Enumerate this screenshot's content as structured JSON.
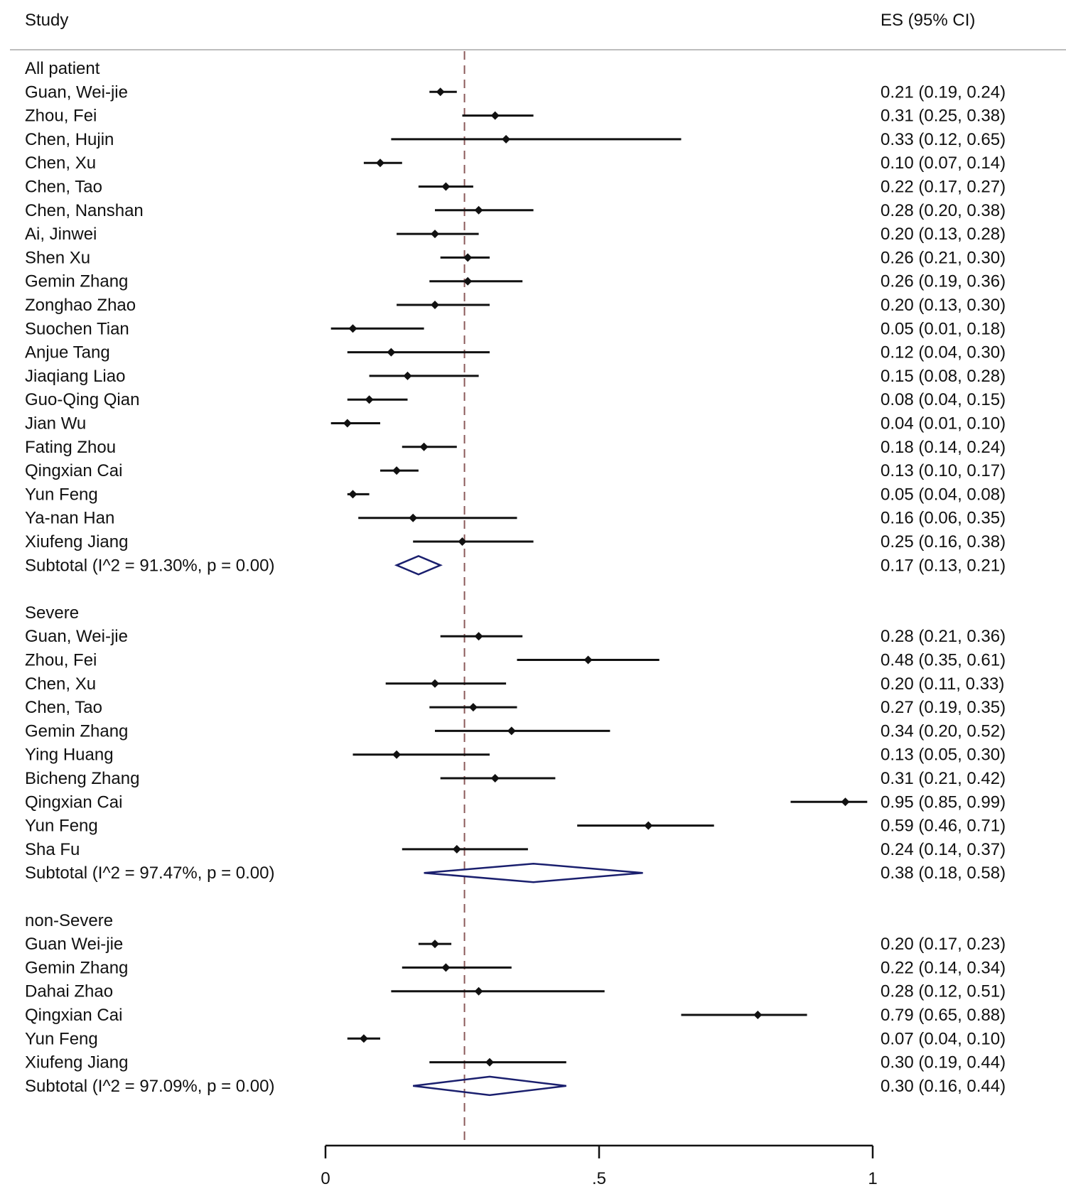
{
  "header": {
    "study_label": "Study",
    "es_label": "ES (95% CI)"
  },
  "colors": {
    "ci_line": "#111111",
    "point": "#111111",
    "diamond": "#1a1f6e",
    "ref_line": "#8b5a5a",
    "header_rule": "#bdbdbd",
    "axis": "#111111"
  },
  "chart_data": {
    "type": "forest",
    "title": "",
    "xlabel": "",
    "ylabel": "",
    "xlim": [
      0,
      1
    ],
    "x_ticks": [
      0,
      0.5,
      1
    ],
    "x_tick_labels": [
      "0",
      ".5",
      "1"
    ],
    "reference_line": 0.254,
    "grid": false,
    "groups": [
      {
        "name": "All patient",
        "studies": [
          {
            "study": "Guan, Wei-jie",
            "es": 0.21,
            "lo": 0.19,
            "hi": 0.24,
            "label": "0.21 (0.19, 0.24)"
          },
          {
            "study": "Zhou, Fei",
            "es": 0.31,
            "lo": 0.25,
            "hi": 0.38,
            "label": "0.31 (0.25, 0.38)"
          },
          {
            "study": "Chen, Hujin",
            "es": 0.33,
            "lo": 0.12,
            "hi": 0.65,
            "label": "0.33 (0.12, 0.65)"
          },
          {
            "study": "Chen, Xu",
            "es": 0.1,
            "lo": 0.07,
            "hi": 0.14,
            "label": "0.10 (0.07, 0.14)"
          },
          {
            "study": "Chen, Tao",
            "es": 0.22,
            "lo": 0.17,
            "hi": 0.27,
            "label": "0.22 (0.17, 0.27)"
          },
          {
            "study": "Chen, Nanshan",
            "es": 0.28,
            "lo": 0.2,
            "hi": 0.38,
            "label": "0.28 (0.20, 0.38)"
          },
          {
            "study": "Ai, Jinwei",
            "es": 0.2,
            "lo": 0.13,
            "hi": 0.28,
            "label": "0.20 (0.13, 0.28)"
          },
          {
            "study": "Shen Xu",
            "es": 0.26,
            "lo": 0.21,
            "hi": 0.3,
            "label": "0.26 (0.21, 0.30)"
          },
          {
            "study": "Gemin Zhang",
            "es": 0.26,
            "lo": 0.19,
            "hi": 0.36,
            "label": "0.26 (0.19, 0.36)"
          },
          {
            "study": "Zonghao Zhao",
            "es": 0.2,
            "lo": 0.13,
            "hi": 0.3,
            "label": "0.20 (0.13, 0.30)"
          },
          {
            "study": "Suochen Tian",
            "es": 0.05,
            "lo": 0.01,
            "hi": 0.18,
            "label": "0.05 (0.01, 0.18)"
          },
          {
            "study": "Anjue Tang",
            "es": 0.12,
            "lo": 0.04,
            "hi": 0.3,
            "label": "0.12 (0.04, 0.30)"
          },
          {
            "study": "Jiaqiang Liao",
            "es": 0.15,
            "lo": 0.08,
            "hi": 0.28,
            "label": "0.15 (0.08, 0.28)"
          },
          {
            "study": "Guo-Qing Qian",
            "es": 0.08,
            "lo": 0.04,
            "hi": 0.15,
            "label": "0.08 (0.04, 0.15)"
          },
          {
            "study": "Jian Wu",
            "es": 0.04,
            "lo": 0.01,
            "hi": 0.1,
            "label": "0.04 (0.01, 0.10)"
          },
          {
            "study": "Fating Zhou",
            "es": 0.18,
            "lo": 0.14,
            "hi": 0.24,
            "label": "0.18 (0.14, 0.24)"
          },
          {
            "study": "Qingxian Cai",
            "es": 0.13,
            "lo": 0.1,
            "hi": 0.17,
            "label": "0.13 (0.10, 0.17)"
          },
          {
            "study": "Yun Feng",
            "es": 0.05,
            "lo": 0.04,
            "hi": 0.08,
            "label": "0.05 (0.04, 0.08)"
          },
          {
            "study": "Ya-nan Han",
            "es": 0.16,
            "lo": 0.06,
            "hi": 0.35,
            "label": "0.16 (0.06, 0.35)"
          },
          {
            "study": "Xiufeng Jiang",
            "es": 0.25,
            "lo": 0.16,
            "hi": 0.38,
            "label": "0.25 (0.16, 0.38)"
          }
        ],
        "subtotal": {
          "text": "Subtotal  (I^2 = 91.30%, p = 0.00)",
          "es": 0.17,
          "lo": 0.13,
          "hi": 0.21,
          "label": "0.17 (0.13, 0.21)"
        }
      },
      {
        "name": "Severe",
        "studies": [
          {
            "study": "Guan, Wei-jie",
            "es": 0.28,
            "lo": 0.21,
            "hi": 0.36,
            "label": "0.28 (0.21, 0.36)"
          },
          {
            "study": "Zhou, Fei",
            "es": 0.48,
            "lo": 0.35,
            "hi": 0.61,
            "label": "0.48 (0.35, 0.61)"
          },
          {
            "study": "Chen, Xu",
            "es": 0.2,
            "lo": 0.11,
            "hi": 0.33,
            "label": "0.20 (0.11, 0.33)"
          },
          {
            "study": "Chen, Tao",
            "es": 0.27,
            "lo": 0.19,
            "hi": 0.35,
            "label": "0.27 (0.19, 0.35)"
          },
          {
            "study": "Gemin Zhang",
            "es": 0.34,
            "lo": 0.2,
            "hi": 0.52,
            "label": "0.34 (0.20, 0.52)"
          },
          {
            "study": "Ying Huang",
            "es": 0.13,
            "lo": 0.05,
            "hi": 0.3,
            "label": "0.13 (0.05, 0.30)"
          },
          {
            "study": "Bicheng Zhang",
            "es": 0.31,
            "lo": 0.21,
            "hi": 0.42,
            "label": "0.31 (0.21, 0.42)"
          },
          {
            "study": "Qingxian Cai",
            "es": 0.95,
            "lo": 0.85,
            "hi": 0.99,
            "label": "0.95 (0.85, 0.99)"
          },
          {
            "study": "Yun Feng",
            "es": 0.59,
            "lo": 0.46,
            "hi": 0.71,
            "label": "0.59 (0.46, 0.71)"
          },
          {
            "study": "Sha Fu",
            "es": 0.24,
            "lo": 0.14,
            "hi": 0.37,
            "label": "0.24 (0.14, 0.37)"
          }
        ],
        "subtotal": {
          "text": "Subtotal  (I^2 = 97.47%, p = 0.00)",
          "es": 0.38,
          "lo": 0.18,
          "hi": 0.58,
          "label": "0.38 (0.18, 0.58)"
        }
      },
      {
        "name": "non-Severe",
        "studies": [
          {
            "study": "Guan Wei-jie",
            "es": 0.2,
            "lo": 0.17,
            "hi": 0.23,
            "label": "0.20 (0.17, 0.23)"
          },
          {
            "study": "Gemin Zhang",
            "es": 0.22,
            "lo": 0.14,
            "hi": 0.34,
            "label": "0.22 (0.14, 0.34)"
          },
          {
            "study": "Dahai Zhao",
            "es": 0.28,
            "lo": 0.12,
            "hi": 0.51,
            "label": "0.28 (0.12, 0.51)"
          },
          {
            "study": "Qingxian Cai",
            "es": 0.79,
            "lo": 0.65,
            "hi": 0.88,
            "label": "0.79 (0.65, 0.88)"
          },
          {
            "study": "Yun Feng",
            "es": 0.07,
            "lo": 0.04,
            "hi": 0.1,
            "label": "0.07 (0.04, 0.10)"
          },
          {
            "study": "Xiufeng Jiang",
            "es": 0.3,
            "lo": 0.19,
            "hi": 0.44,
            "label": "0.30 (0.19, 0.44)"
          }
        ],
        "subtotal": {
          "text": "Subtotal  (I^2 = 97.09%, p = 0.00)",
          "es": 0.3,
          "lo": 0.16,
          "hi": 0.44,
          "label": "0.30 (0.16, 0.44)"
        }
      }
    ]
  }
}
